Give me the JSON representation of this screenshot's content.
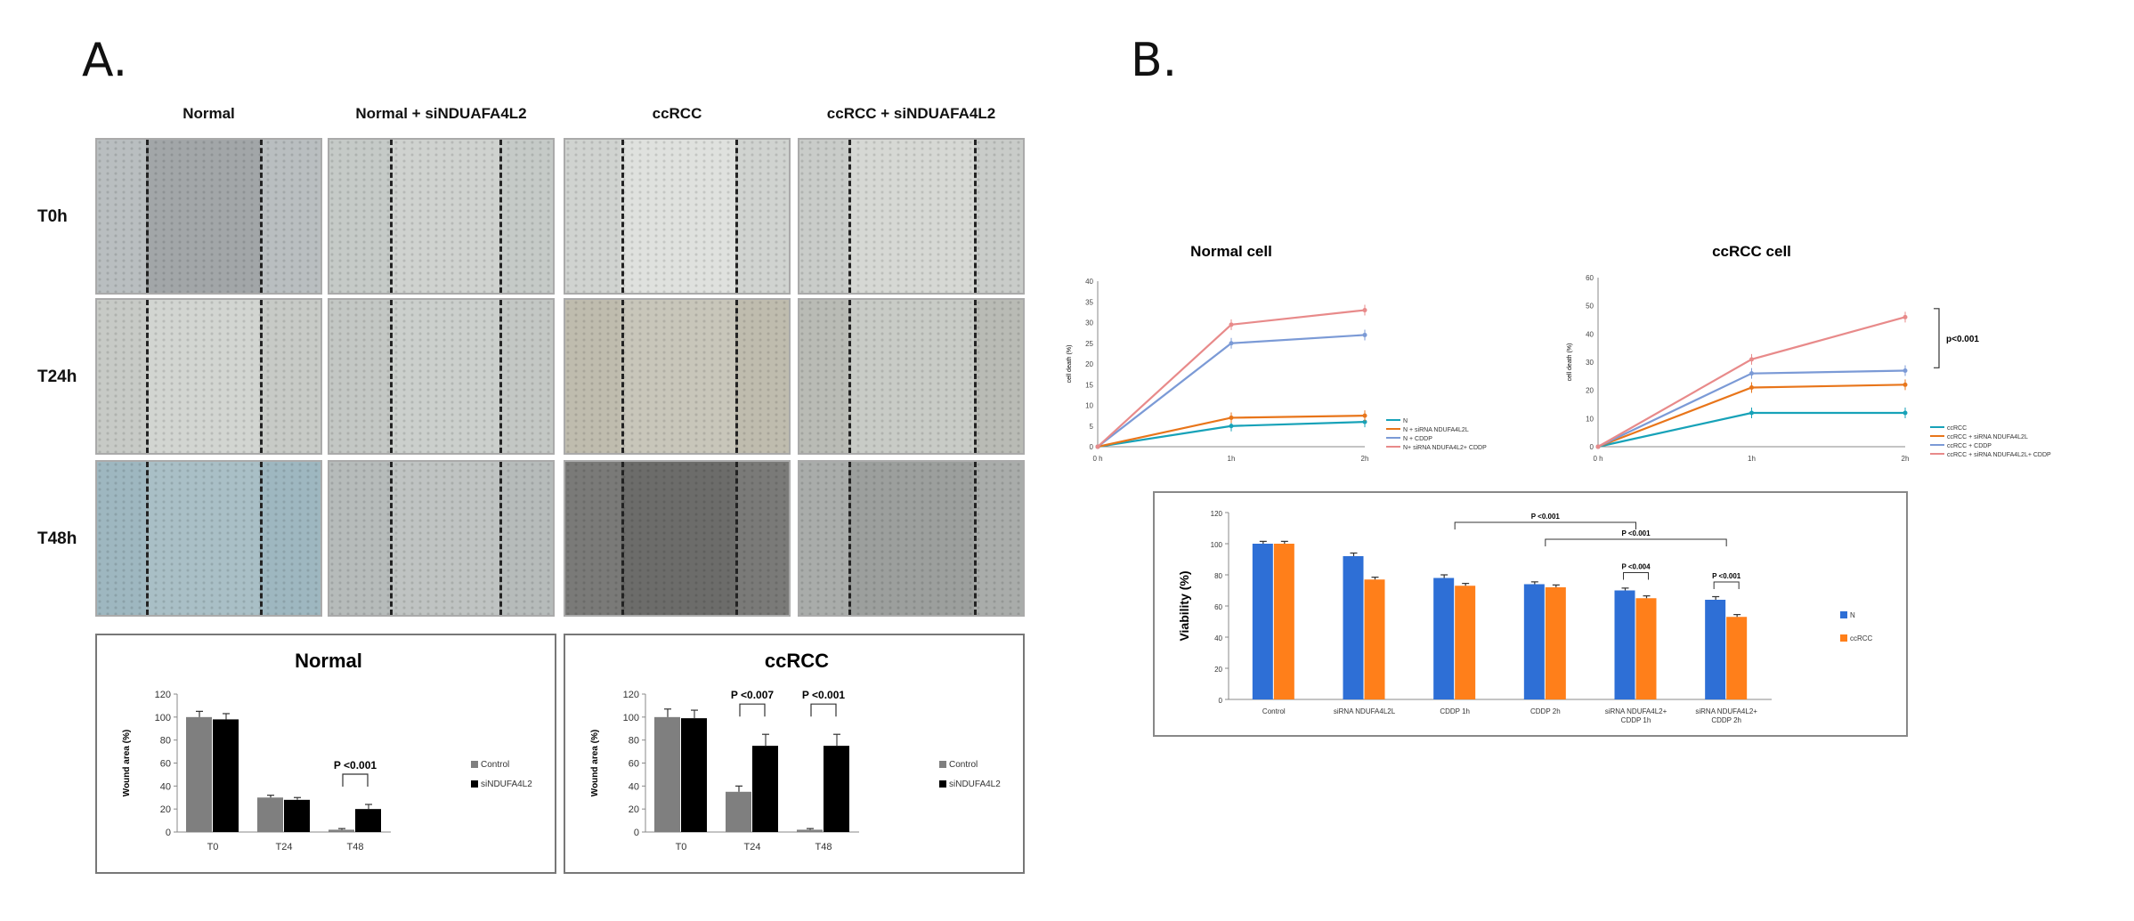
{
  "panel_labels": {
    "a": "A.",
    "b": "B."
  },
  "micro": {
    "columns": [
      "Normal",
      "Normal + siNDUAFA4L2",
      "ccRCC",
      "ccRCC + siNDUAFA4L2"
    ],
    "rows": [
      "T0h",
      "T24h",
      "T48h"
    ]
  },
  "chart_data": [
    {
      "id": "wound-normal",
      "type": "bar",
      "title": "Normal",
      "ylabel": "Wound area (%)",
      "ylim": [
        0,
        120
      ],
      "yticks": [
        0,
        20,
        40,
        60,
        80,
        100,
        120
      ],
      "categories": [
        "T0",
        "T24",
        "T48"
      ],
      "series": [
        {
          "name": "Control",
          "values": [
            100,
            30,
            2
          ],
          "errors": [
            5,
            2,
            1
          ],
          "color": "#7f7f7f"
        },
        {
          "name": "siNDUFA4L2",
          "values": [
            98,
            28,
            20
          ],
          "errors": [
            5,
            2,
            4
          ],
          "color": "#000000"
        }
      ],
      "annotations": [
        {
          "text": "P <0.001",
          "category": 2
        }
      ]
    },
    {
      "id": "wound-ccrcc",
      "type": "bar",
      "title": "ccRCC",
      "ylabel": "Wound area (%)",
      "ylim": [
        0,
        120
      ],
      "yticks": [
        0,
        20,
        40,
        60,
        80,
        100,
        120
      ],
      "categories": [
        "T0",
        "T24",
        "T48"
      ],
      "series": [
        {
          "name": "Control",
          "values": [
            100,
            35,
            2
          ],
          "errors": [
            7,
            5,
            1
          ],
          "color": "#7f7f7f"
        },
        {
          "name": "siNDUFA4L2",
          "values": [
            99,
            75,
            75
          ],
          "errors": [
            7,
            10,
            10
          ],
          "color": "#000000"
        }
      ],
      "annotations": [
        {
          "text": "P <0.007",
          "category": 1
        },
        {
          "text": "P <0.001",
          "category": 2
        }
      ]
    },
    {
      "id": "death-normal",
      "type": "line",
      "title": "Normal cell",
      "ylabel": "cell death (%)",
      "ylim": [
        0,
        40
      ],
      "yticks": [
        0,
        5,
        10,
        15,
        20,
        25,
        30,
        35,
        40
      ],
      "x": [
        "0 h",
        "1h",
        "2h"
      ],
      "series": [
        {
          "name": "N",
          "values": [
            0,
            5,
            6
          ],
          "color": "#17a2b8"
        },
        {
          "name": "N + siRNA NDUFA4L2L",
          "values": [
            0,
            7,
            7.5
          ],
          "color": "#e8751a"
        },
        {
          "name": "N + CDDP",
          "values": [
            0,
            25,
            27
          ],
          "color": "#7b9ad6"
        },
        {
          "name": "N+ siRNA NDUFA4L2+ CDDP",
          "values": [
            0,
            29.5,
            33
          ],
          "color": "#e88a8a"
        }
      ]
    },
    {
      "id": "death-ccrcc",
      "type": "line",
      "title": "ccRCC cell",
      "ylabel": "cell death (%)",
      "ylim": [
        0,
        60
      ],
      "yticks": [
        0,
        10,
        20,
        30,
        40,
        50,
        60
      ],
      "x": [
        "0 h",
        "1h",
        "2h"
      ],
      "series": [
        {
          "name": "ccRCC",
          "values": [
            0,
            12,
            12
          ],
          "color": "#17a2b8"
        },
        {
          "name": "ccRCC + siRNA NDUFA4L2L",
          "values": [
            0,
            21,
            22
          ],
          "color": "#e8751a"
        },
        {
          "name": "ccRCC + CDDP",
          "values": [
            0,
            26,
            27
          ],
          "color": "#7b9ad6"
        },
        {
          "name": "ccRCC + siRNA NDUFA4L2L+ CDDP",
          "values": [
            0,
            31,
            46
          ],
          "color": "#e88a8a"
        }
      ],
      "annotations": [
        {
          "text": "p<0.001"
        }
      ]
    },
    {
      "id": "viability",
      "type": "bar",
      "ylabel": "Viability (%)",
      "ylim": [
        0,
        120
      ],
      "yticks": [
        0,
        20,
        40,
        60,
        80,
        100,
        120
      ],
      "categories": [
        "Control",
        "siRNA NDUFA4L2L",
        "CDDP 1h",
        "CDDP 2h",
        "siRNA NDUFA4L2+ CDDP 1h",
        "siRNA NDUFA4L2+ CDDP 2h"
      ],
      "series": [
        {
          "name": "N",
          "values": [
            100,
            92,
            78,
            74,
            70,
            64
          ],
          "errors": [
            1.5,
            2,
            2,
            1.5,
            1.5,
            2
          ],
          "color": "#2e6fd6"
        },
        {
          "name": "ccRCC",
          "values": [
            100,
            77,
            73,
            72,
            65,
            53
          ],
          "errors": [
            1.5,
            1.5,
            1.5,
            1.5,
            1.5,
            1.5
          ],
          "color": "#ff7f1a"
        }
      ],
      "annotations": [
        {
          "text": "P <0.001",
          "from": 2,
          "to": 4
        },
        {
          "text": "P <0.001",
          "from": 3,
          "to": 5
        },
        {
          "text": "P <0.004",
          "category": 4
        },
        {
          "text": "P <0.001",
          "category": 5
        }
      ]
    }
  ]
}
